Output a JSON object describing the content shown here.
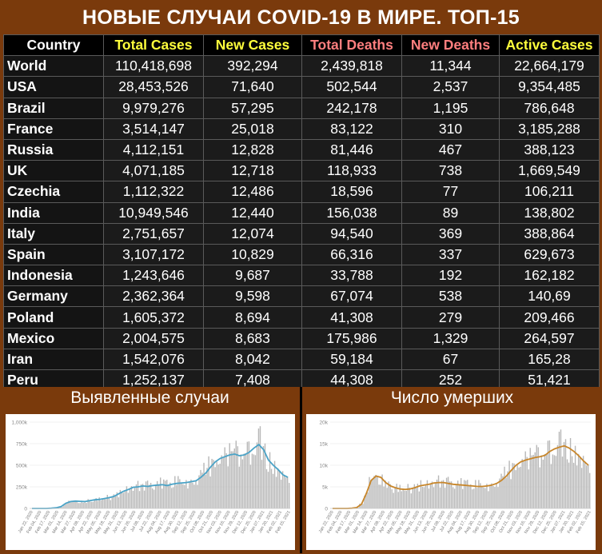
{
  "title": "НОВЫЕ СЛУЧАИ COVID-19 В МИРЕ. ТОП-15",
  "colors": {
    "background": "#7a3a0c",
    "header_country": "#ffffff",
    "header_cases": "#ffff3c",
    "header_deaths": "#ff7f7f",
    "cases_line": "#4aa3c7",
    "deaths_line": "#c8862a",
    "bar_gray": "#b8b8b8"
  },
  "table": {
    "headers": [
      "Country",
      "Total Cases",
      "New Cases",
      "Total Deaths",
      "New Deaths",
      "Active Cases"
    ],
    "rows": [
      [
        "World",
        "110,418,698",
        "392,294",
        "2,439,818",
        "11,344",
        "22,664,179"
      ],
      [
        "USA",
        "28,453,526",
        "71,640",
        "502,544",
        "2,537",
        "9,354,485"
      ],
      [
        "Brazil",
        "9,979,276",
        "57,295",
        "242,178",
        "1,195",
        "786,648"
      ],
      [
        "France",
        "3,514,147",
        "25,018",
        "83,122",
        "310",
        "3,185,288"
      ],
      [
        "Russia",
        "4,112,151",
        "12,828",
        "81,446",
        "467",
        "388,123"
      ],
      [
        "UK",
        "4,071,185",
        "12,718",
        "118,933",
        "738",
        "1,669,549"
      ],
      [
        "Czechia",
        "1,112,322",
        "12,486",
        "18,596",
        "77",
        "106,211"
      ],
      [
        "India",
        "10,949,546",
        "12,440",
        "156,038",
        "89",
        "138,802"
      ],
      [
        "Italy",
        "2,751,657",
        "12,074",
        "94,540",
        "369",
        "388,864"
      ],
      [
        "Spain",
        "3,107,172",
        "10,829",
        "66,316",
        "337",
        "629,673"
      ],
      [
        "Indonesia",
        "1,243,646",
        "9,687",
        "33,788",
        "192",
        "162,182"
      ],
      [
        "Germany",
        "2,362,364",
        "9,598",
        "67,074",
        "538",
        "140,69"
      ],
      [
        "Poland",
        "1,605,372",
        "8,694",
        "41,308",
        "279",
        "209,466"
      ],
      [
        "Mexico",
        "2,004,575",
        "8,683",
        "175,986",
        "1,329",
        "264,597"
      ],
      [
        "Iran",
        "1,542,076",
        "8,042",
        "59,184",
        "67",
        "165,28"
      ],
      [
        "Peru",
        "1,252,137",
        "7,408",
        "44,308",
        "252",
        "51,421"
      ]
    ]
  },
  "chart_data": [
    {
      "type": "bar",
      "title": "Выявленные случаи",
      "yticks": [
        "0",
        "250k",
        "500k",
        "750k",
        "1,000k"
      ],
      "ylim": [
        0,
        1000000
      ],
      "xticks": [
        "Jan 22, 2020",
        "Feb 04, 2020",
        "Feb 17, 2020",
        "Mar 01, 2020",
        "Mar 14, 2020",
        "Mar 27, 2020",
        "Apr 09, 2020",
        "Apr 22, 2020",
        "May 05, 2020",
        "May 18, 2020",
        "May 31, 2020",
        "Jun 13, 2020",
        "Jun 26, 2020",
        "Jul 09, 2020",
        "Jul 22, 2020",
        "Aug 04, 2020",
        "Aug 17, 2020",
        "Aug 30, 2020",
        "Sep 12, 2020",
        "Sep 25, 2020",
        "Oct 08, 2020",
        "Oct 21, 2020",
        "Nov 03, 2020",
        "Nov 16, 2020",
        "Nov 29, 2020",
        "Dec 12, 2020",
        "Dec 25, 2020",
        "Jan 07, 2021",
        "Jan 20, 2021",
        "Feb 02, 2021",
        "Feb 15, 2021"
      ],
      "series": [
        {
          "values": [
            0,
            0,
            0,
            0,
            3000,
            7000,
            20000,
            60000,
            80000,
            85000,
            82000,
            80000,
            90000,
            100000,
            105000,
            115000,
            125000,
            140000,
            170000,
            200000,
            220000,
            245000,
            250000,
            260000,
            255000,
            265000,
            270000,
            275000,
            265000,
            280000,
            290000,
            295000,
            300000,
            310000,
            320000,
            360000,
            410000,
            480000,
            540000,
            580000,
            600000,
            620000,
            630000,
            610000,
            620000,
            650000,
            700000,
            740000,
            680000,
            560000,
            500000,
            450000,
            390000,
            360000
          ]
        }
      ]
    },
    {
      "type": "bar",
      "title": "Число умерших",
      "yticks": [
        "0",
        "5k",
        "10k",
        "15k",
        "20k"
      ],
      "ylim": [
        0,
        20000
      ],
      "xticks": [
        "Jan 22, 2020",
        "Feb 04, 2020",
        "Feb 17, 2020",
        "Mar 01, 2020",
        "Mar 14, 2020",
        "Mar 27, 2020",
        "Apr 09, 2020",
        "Apr 22, 2020",
        "May 05, 2020",
        "May 18, 2020",
        "May 31, 2020",
        "Jun 13, 2020",
        "Jun 26, 2020",
        "Jul 09, 2020",
        "Jul 22, 2020",
        "Aug 04, 2020",
        "Aug 17, 2020",
        "Aug 30, 2020",
        "Sep 12, 2020",
        "Sep 25, 2020",
        "Oct 08, 2020",
        "Oct 21, 2020",
        "Nov 03, 2020",
        "Nov 16, 2020",
        "Nov 29, 2020",
        "Dec 12, 2020",
        "Dec 25, 2020",
        "Jan 07, 2021",
        "Jan 20, 2021",
        "Feb 02, 2021",
        "Feb 15, 2021"
      ],
      "series": [
        {
          "values": [
            0,
            0,
            0,
            0,
            50,
            200,
            1000,
            3500,
            6500,
            7500,
            7200,
            6000,
            5200,
            4800,
            4500,
            4400,
            4500,
            4800,
            5200,
            5400,
            5600,
            5900,
            6000,
            6000,
            5800,
            5600,
            5500,
            5400,
            5300,
            5200,
            5100,
            5100,
            5200,
            5400,
            5800,
            6500,
            7500,
            8800,
            10000,
            10800,
            11200,
            11500,
            11800,
            12000,
            12300,
            13200,
            13800,
            14200,
            14500,
            14000,
            13200,
            12200,
            11000,
            10000
          ]
        }
      ]
    }
  ],
  "panels": {
    "left_title": "Выявленные случаи",
    "right_title": "Число умерших"
  }
}
